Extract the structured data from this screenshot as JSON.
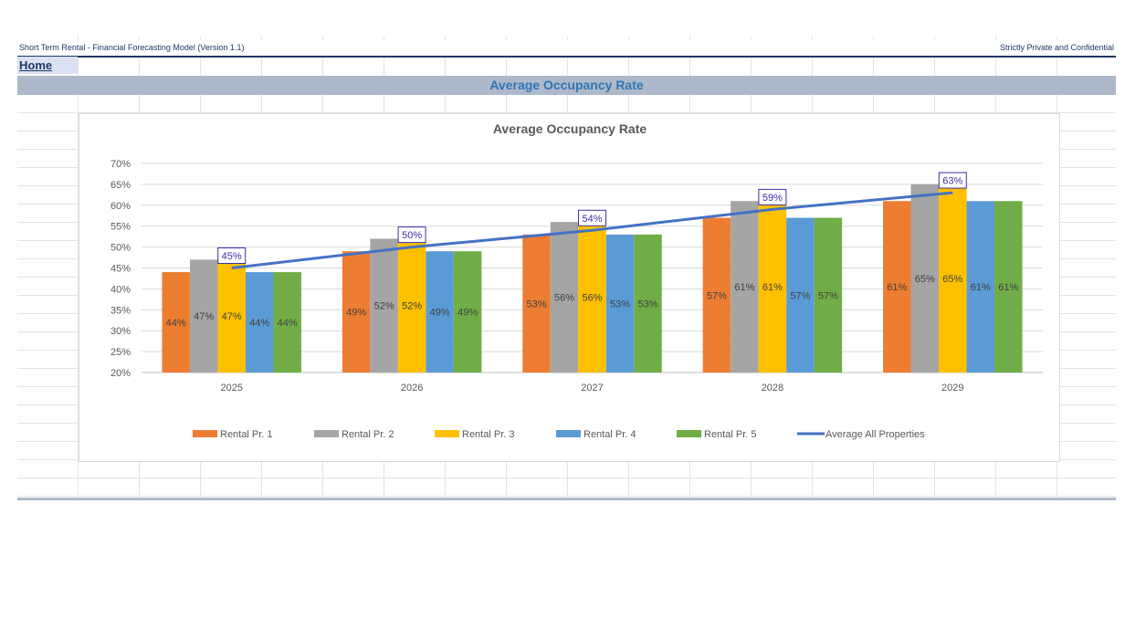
{
  "header": {
    "doc_title": "Short Term Rental - Financial Forecasting Model (Version 1.1)",
    "confidential": "Strictly Private and Confidential"
  },
  "nav": {
    "home_label": "Home"
  },
  "banner": {
    "title": "Average Occupancy Rate"
  },
  "colors": {
    "rental_1": "#ed7d31",
    "rental_2": "#a5a5a5",
    "rental_3": "#ffc000",
    "rental_4": "#5b9bd5",
    "rental_5": "#70ad47",
    "average_line": "#4472c4",
    "avg_label": "#3d2ea8",
    "banner_bg": "#adb9ca",
    "banner_text": "#2e75b6"
  },
  "chart_data": {
    "type": "bar",
    "title": "Average Occupancy Rate",
    "categories": [
      "2025",
      "2026",
      "2027",
      "2028",
      "2029"
    ],
    "ylim": [
      0.2,
      0.7
    ],
    "yticks": [
      "20%",
      "25%",
      "30%",
      "35%",
      "40%",
      "45%",
      "50%",
      "55%",
      "60%",
      "65%",
      "70%"
    ],
    "grid": true,
    "legend_position": "bottom",
    "series": [
      {
        "name": "Rental Pr. 1",
        "values": [
          0.44,
          0.49,
          0.53,
          0.57,
          0.61
        ],
        "labels": [
          "44%",
          "49%",
          "53%",
          "57%",
          "61%"
        ]
      },
      {
        "name": "Rental Pr. 2",
        "values": [
          0.47,
          0.52,
          0.56,
          0.61,
          0.65
        ],
        "labels": [
          "47%",
          "52%",
          "56%",
          "61%",
          "65%"
        ]
      },
      {
        "name": "Rental Pr. 3",
        "values": [
          0.47,
          0.52,
          0.56,
          0.61,
          0.65
        ],
        "labels": [
          "47%",
          "52%",
          "56%",
          "61%",
          "65%"
        ]
      },
      {
        "name": "Rental Pr. 4",
        "values": [
          0.44,
          0.49,
          0.53,
          0.57,
          0.61
        ],
        "labels": [
          "44%",
          "49%",
          "53%",
          "57%",
          "61%"
        ]
      },
      {
        "name": "Rental Pr. 5",
        "values": [
          0.44,
          0.49,
          0.53,
          0.57,
          0.61
        ],
        "labels": [
          "44%",
          "49%",
          "53%",
          "57%",
          "61%"
        ]
      }
    ],
    "line_series": {
      "name": "Average All Properties",
      "type": "line",
      "values": [
        0.45,
        0.5,
        0.54,
        0.59,
        0.63
      ],
      "labels": [
        "45%",
        "50%",
        "54%",
        "59%",
        "63%"
      ]
    }
  }
}
